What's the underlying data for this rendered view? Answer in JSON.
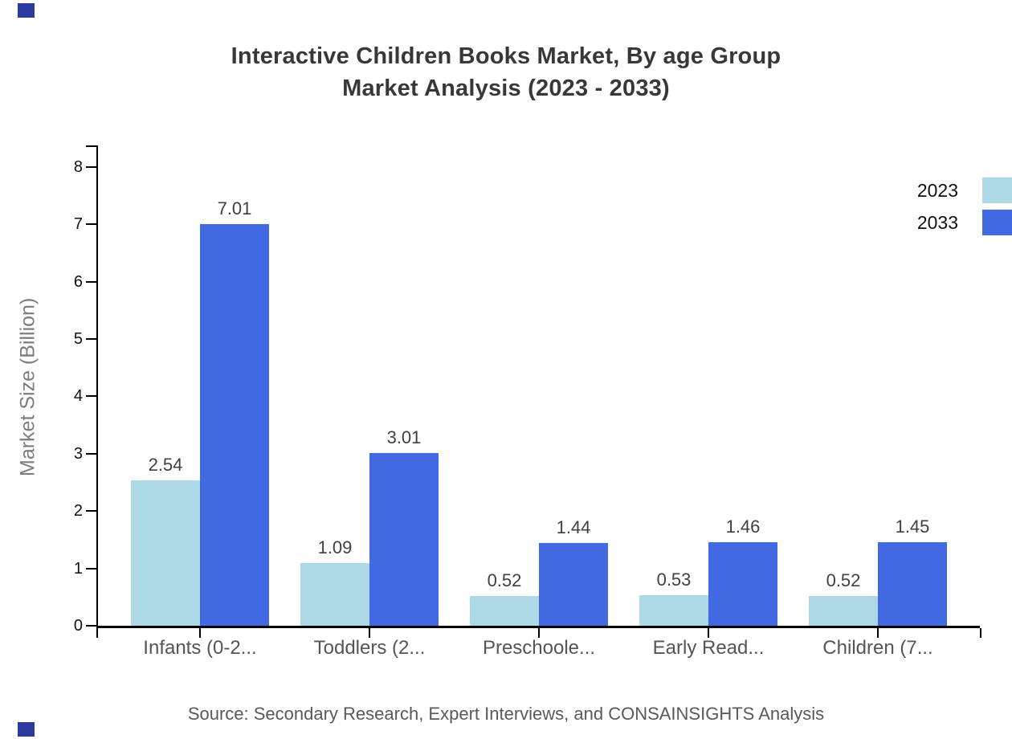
{
  "title": {
    "line1": "Interactive Children Books Market, By age Group",
    "line2": "Market Analysis (2023 - 2033)"
  },
  "y_axis_title": "Market Size (Billion)",
  "source_text": "Source: Secondary Research, Expert Interviews, and CONSAINSIGHTS Analysis",
  "legend": {
    "position": "top-right",
    "items": [
      {
        "label": "2023",
        "color": "#ADD8E6"
      },
      {
        "label": "2033",
        "color": "#4169E1"
      }
    ]
  },
  "colors": {
    "series_2023": "#ADD8E6",
    "series_2033": "#4169E1",
    "axis": "#000000",
    "title_text": "#383838",
    "category_text": "#555555",
    "value_text": "#404040",
    "tick_text": "#111111",
    "y_title_text": "#7D7D7D",
    "source_text": "#595959",
    "corner_square": "#2C3A9E",
    "background": "#FFFFFF"
  },
  "chart_data": {
    "type": "bar",
    "title": "Interactive Children Books Market, By age Group Market Analysis (2023 - 2033)",
    "categories": [
      "Infants (0-2...",
      "Toddlers (2...",
      "Preschoole...",
      "Early Read...",
      "Children (7..."
    ],
    "series": [
      {
        "name": "2023",
        "color": "#ADD8E6",
        "values": [
          2.54,
          1.09,
          0.52,
          0.53,
          0.52
        ]
      },
      {
        "name": "2033",
        "color": "#4169E1",
        "values": [
          7.01,
          3.01,
          1.44,
          1.46,
          1.45
        ]
      }
    ],
    "value_labels": [
      [
        "2.54",
        "1.09",
        "0.52",
        "0.53",
        "0.52"
      ],
      [
        "7.01",
        "3.01",
        "1.44",
        "1.46",
        "1.45"
      ]
    ],
    "xlabel": "",
    "ylabel": "Market Size (Billion)",
    "ylim": [
      0,
      8.42
    ],
    "yticks": [
      0,
      1,
      2,
      3,
      4,
      5,
      6,
      7,
      8
    ],
    "grid": false,
    "legend_position": "top-right"
  }
}
